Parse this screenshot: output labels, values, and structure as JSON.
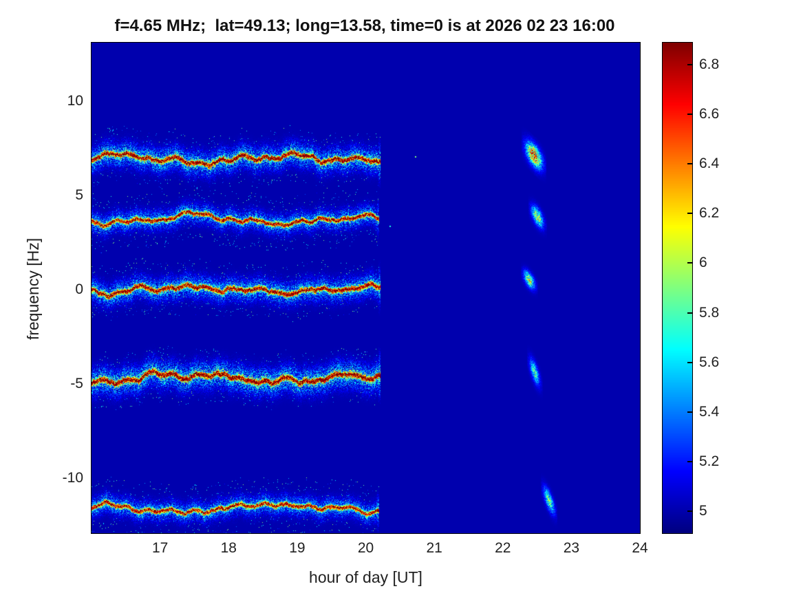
{
  "title": "f=4.65 MHz;  lat=49.13; long=13.58, time=0 is at 2026 02 23 16:00",
  "axes": {
    "xlabel": "hour of day [UT]",
    "ylabel": "frequency [Hz]",
    "xlim": [
      16.0,
      24.0
    ],
    "ylim": [
      -12.9,
      13.1
    ],
    "x_ticks": [
      {
        "label": "17",
        "value": 17
      },
      {
        "label": "18",
        "value": 18
      },
      {
        "label": "19",
        "value": 19
      },
      {
        "label": "20",
        "value": 20
      },
      {
        "label": "21",
        "value": 21
      },
      {
        "label": "22",
        "value": 22
      },
      {
        "label": "23",
        "value": 23
      },
      {
        "label": "24",
        "value": 24
      }
    ],
    "y_ticks": [
      {
        "label": "10",
        "value": 10
      },
      {
        "label": "5",
        "value": 5
      },
      {
        "label": "0",
        "value": 0
      },
      {
        "label": "-5",
        "value": -5
      },
      {
        "label": "-10",
        "value": -10
      }
    ]
  },
  "colorbar": {
    "colormap": "jet",
    "vmin": 4.91,
    "vmax": 6.89,
    "ticks": [
      {
        "label": "6.8",
        "value": 6.8
      },
      {
        "label": "6.6",
        "value": 6.6
      },
      {
        "label": "6.4",
        "value": 6.4
      },
      {
        "label": "6.2",
        "value": 6.2
      },
      {
        "label": "6",
        "value": 6.0
      },
      {
        "label": "5.8",
        "value": 5.8
      },
      {
        "label": "5.6",
        "value": 5.6
      },
      {
        "label": "5.4",
        "value": 5.4
      },
      {
        "label": "5.2",
        "value": 5.2
      },
      {
        "label": "5",
        "value": 5.0
      }
    ]
  },
  "chart_data": {
    "type": "heatmap",
    "title": "f=4.65 MHz;  lat=49.13; long=13.58, time=0 is at 2026 02 23 16:00",
    "xlabel": "hour of day [UT]",
    "ylabel": "frequency [Hz]",
    "xlim": [
      16.0,
      24.0
    ],
    "ylim": [
      -12.9,
      13.1
    ],
    "colormap": "jet",
    "caxis": [
      4.91,
      6.89
    ],
    "background_value": 5.0,
    "traces": [
      {
        "center_freq_hz": 6.95,
        "t_start": 16.0,
        "t_end": 20.22,
        "peak_value": 6.88,
        "wiggle": 1.0,
        "core_sigma": 0.09,
        "fuzz_sigma": 0.4,
        "fuzz_amp": 0.95
      },
      {
        "center_freq_hz": 3.7,
        "t_start": 16.0,
        "t_end": 20.2,
        "peak_value": 6.8,
        "wiggle": 0.9,
        "core_sigma": 0.08,
        "fuzz_sigma": 0.33,
        "fuzz_amp": 0.85
      },
      {
        "center_freq_hz": 0.0,
        "t_start": 16.0,
        "t_end": 20.22,
        "peak_value": 6.85,
        "wiggle": 0.9,
        "core_sigma": 0.09,
        "fuzz_sigma": 0.38,
        "fuzz_amp": 0.9
      },
      {
        "center_freq_hz": -4.75,
        "t_start": 16.0,
        "t_end": 20.22,
        "peak_value": 6.88,
        "wiggle": 1.0,
        "core_sigma": 0.1,
        "fuzz_sigma": 0.45,
        "fuzz_amp": 1.0
      },
      {
        "center_freq_hz": -11.55,
        "t_start": 16.0,
        "t_end": 20.2,
        "peak_value": 6.75,
        "wiggle": 0.85,
        "core_sigma": 0.08,
        "fuzz_sigma": 0.33,
        "fuzz_amp": 0.8
      }
    ],
    "late_blobs": [
      {
        "t_center": 22.45,
        "t_span": 0.35,
        "freq_center": 7.15,
        "freq_span": 1.6,
        "tilt": -1.2,
        "peak_value": 6.8
      },
      {
        "t_center": 22.5,
        "t_span": 0.26,
        "freq_center": 3.9,
        "freq_span": 1.3,
        "tilt": -1.0,
        "peak_value": 6.25
      },
      {
        "t_center": 22.38,
        "t_span": 0.24,
        "freq_center": 0.55,
        "freq_span": 1.1,
        "tilt": -0.8,
        "peak_value": 6.3
      },
      {
        "t_center": 22.46,
        "t_span": 0.22,
        "freq_center": -4.35,
        "freq_span": 1.5,
        "tilt": -1.4,
        "peak_value": 5.95
      },
      {
        "t_center": 22.67,
        "t_span": 0.24,
        "freq_center": -11.15,
        "freq_span": 1.4,
        "tilt": -1.5,
        "peak_value": 6.05
      }
    ],
    "speckles": [
      {
        "t": 20.72,
        "freq": 7.1,
        "value": 5.9
      },
      {
        "t": 20.35,
        "freq": 3.4,
        "value": 5.7
      }
    ]
  }
}
